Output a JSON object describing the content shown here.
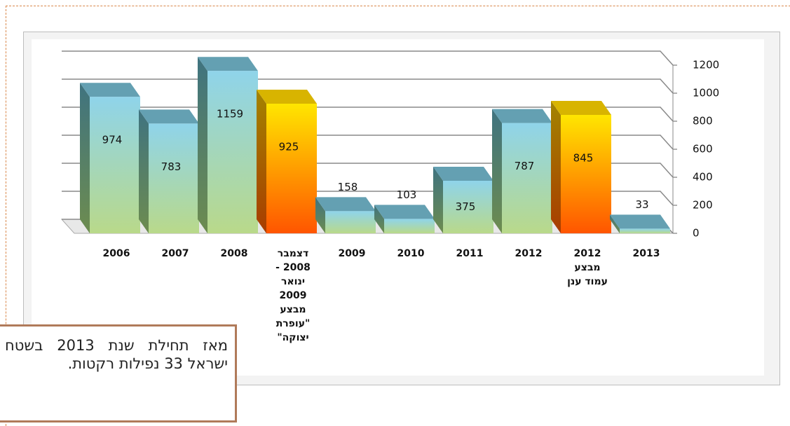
{
  "chart_data": {
    "type": "bar3d",
    "categories": [
      "2006",
      "2007",
      "2008",
      "דצמבר\n2008 -\nינואר\n2009\nמבצע\n\"עופרת\nיצוקה\"",
      "2009",
      "2010",
      "2011",
      "2012",
      "2012\nמבצע\nעמוד ענן",
      "2013"
    ],
    "values": [
      974,
      783,
      1159,
      925,
      158,
      103,
      375,
      787,
      845,
      33
    ],
    "colors": [
      "blue",
      "blue",
      "blue",
      "orange",
      "blue",
      "blue",
      "blue",
      "blue",
      "orange",
      "blue"
    ],
    "ylim": [
      0,
      1200
    ],
    "yticks": [
      0,
      200,
      400,
      600,
      800,
      1000,
      1200
    ],
    "grid": true,
    "axis_side": "right",
    "annotation": "מאז תחילת שנת 2013 בשטח ישראל 33 נפילות רקטות."
  }
}
